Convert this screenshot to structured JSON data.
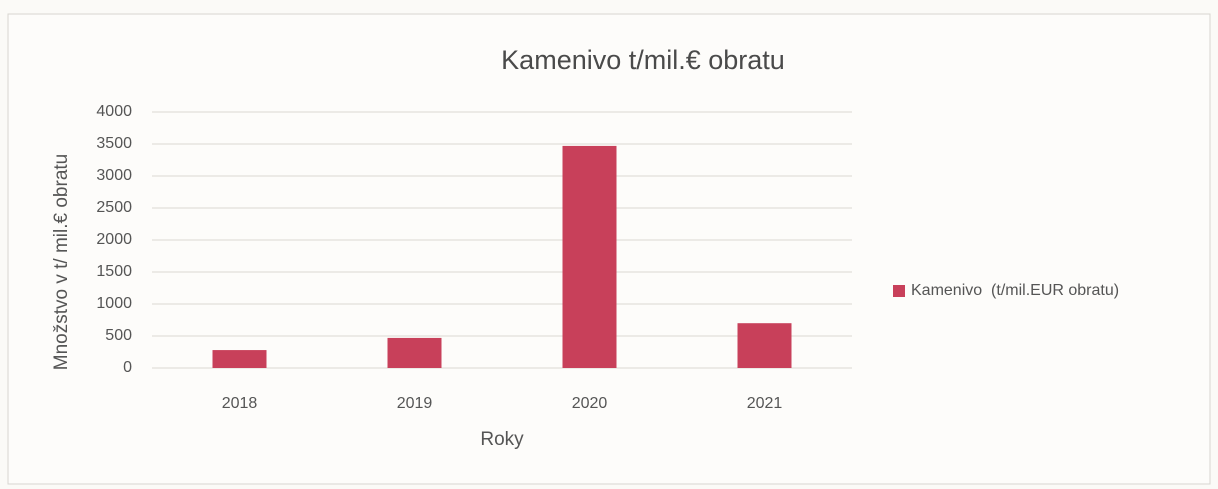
{
  "chart_data": {
    "type": "bar",
    "title": "Kamenivo t/mil.€ obratu",
    "x_label": "Roky",
    "y_label": "Množstvo v t/ mil.€ obratu",
    "categories": [
      "2018",
      "2019",
      "2020",
      "2021"
    ],
    "series": [
      {
        "name": "Kamenivo  (t/mil.EUR obratu)",
        "color": "#c8405a",
        "values": [
          280,
          470,
          3470,
          700
        ]
      }
    ],
    "ylim": [
      0,
      4000
    ],
    "yticks": [
      0,
      500,
      1000,
      1500,
      2000,
      2500,
      3000,
      3500,
      4000
    ],
    "grid": true,
    "legend": "right"
  }
}
